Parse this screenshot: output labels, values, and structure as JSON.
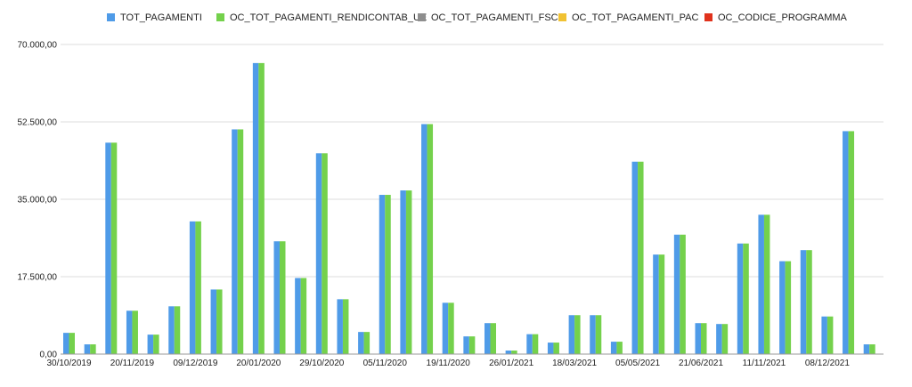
{
  "chart_data": {
    "type": "bar",
    "legend_position": "top-center",
    "grid": true,
    "ylim": [
      0,
      70000
    ],
    "y_ticks": [
      0,
      17500,
      35000,
      52500,
      70000
    ],
    "y_tick_labels": [
      "0,00",
      "17.500,00",
      "35.000,00",
      "52.500,00",
      "70.000,00"
    ],
    "series": [
      {
        "name": "TOT_PAGAMENTI",
        "color": "#4f9be8"
      },
      {
        "name": "OC_TOT_PAGAMENTI_RENDICONTAB_UE",
        "color": "#74d14c"
      },
      {
        "name": "OC_TOT_PAGAMENTI_FSC",
        "color": "#8e8e8e"
      },
      {
        "name": "OC_TOT_PAGAMENTI_PAC",
        "color": "#f1c232"
      },
      {
        "name": "OC_CODICE_PROGRAMMA",
        "color": "#e0321c"
      }
    ],
    "x_tick_labels": [
      "30/10/2019",
      "20/11/2019",
      "09/12/2019",
      "20/01/2020",
      "29/10/2020",
      "05/11/2020",
      "19/11/2020",
      "26/01/2021",
      "18/03/2021",
      "05/05/2021",
      "21/06/2021",
      "11/11/2021",
      "08/12/2021"
    ],
    "n_groups": 39,
    "values": [
      4800,
      2200,
      47800,
      9800,
      4400,
      10800,
      30000,
      14600,
      50800,
      65800,
      25500,
      17200,
      45400,
      12400,
      5000,
      36000,
      37000,
      52000,
      11600,
      4000,
      7000,
      800,
      4500,
      2600,
      8800,
      8800,
      2800,
      43500,
      22500,
      27000,
      7000,
      6800,
      25000,
      31500,
      21000,
      23500,
      8500,
      50400,
      2200
    ]
  }
}
